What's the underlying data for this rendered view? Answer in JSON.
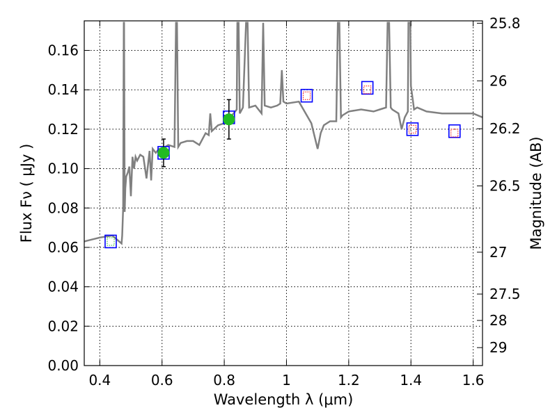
{
  "chart_data": {
    "type": "scatter",
    "title": "",
    "xlabel": "Wavelength  λ (μm)",
    "ylabel": "Flux  Fν  ( μJy )",
    "y2label": "Magnitude (AB)",
    "xlim": [
      0.35,
      1.63
    ],
    "ylim": [
      0.0,
      0.175
    ],
    "grid": true,
    "x_ticks": [
      {
        "value": 0.4,
        "label": "0.4"
      },
      {
        "value": 0.6,
        "label": "0.6"
      },
      {
        "value": 0.8,
        "label": "0.8"
      },
      {
        "value": 1.0,
        "label": "1"
      },
      {
        "value": 1.2,
        "label": "1.2"
      },
      {
        "value": 1.4,
        "label": "1.4"
      },
      {
        "value": 1.6,
        "label": "1.6"
      }
    ],
    "y_ticks": [
      {
        "value": 0.0,
        "label": "0.00"
      },
      {
        "value": 0.02,
        "label": "0.02"
      },
      {
        "value": 0.04,
        "label": "0.04"
      },
      {
        "value": 0.06,
        "label": "0.06"
      },
      {
        "value": 0.08,
        "label": "0.08"
      },
      {
        "value": 0.1,
        "label": "0.10"
      },
      {
        "value": 0.12,
        "label": "0.12"
      },
      {
        "value": 0.14,
        "label": "0.14"
      },
      {
        "value": 0.16,
        "label": "0.16"
      }
    ],
    "y2_ticks": [
      {
        "value": 25.8,
        "label": "25.8"
      },
      {
        "value": 26.0,
        "label": "26"
      },
      {
        "value": 26.2,
        "label": "26.2"
      },
      {
        "value": 26.5,
        "label": "26.5"
      },
      {
        "value": 27.0,
        "label": "27"
      },
      {
        "value": 27.5,
        "label": "27.5"
      },
      {
        "value": 28.0,
        "label": "28"
      },
      {
        "value": 29.0,
        "label": "29"
      }
    ],
    "colors": {
      "spectrum": "#808080",
      "model_box": "#0000ff",
      "upper_limit_box": "#ff0000",
      "detection_point": "#22bb22",
      "error_bar": "#000000"
    },
    "spectrum": {
      "x": [
        0.35,
        0.4,
        0.44,
        0.47,
        0.472,
        0.475,
        0.477,
        0.478,
        0.48,
        0.482,
        0.485,
        0.49,
        0.495,
        0.5,
        0.505,
        0.51,
        0.515,
        0.52,
        0.53,
        0.54,
        0.55,
        0.56,
        0.565,
        0.57,
        0.58,
        0.59,
        0.6,
        0.62,
        0.64,
        0.645,
        0.648,
        0.652,
        0.656,
        0.66,
        0.68,
        0.7,
        0.72,
        0.74,
        0.75,
        0.755,
        0.76,
        0.78,
        0.8,
        0.82,
        0.84,
        0.842,
        0.846,
        0.85,
        0.86,
        0.87,
        0.875,
        0.88,
        0.9,
        0.92,
        0.925,
        0.93,
        0.95,
        0.97,
        0.98,
        0.985,
        0.99,
        1.0,
        1.04,
        1.08,
        1.1,
        1.11,
        1.12,
        1.14,
        1.16,
        1.165,
        1.17,
        1.175,
        1.18,
        1.2,
        1.24,
        1.28,
        1.3,
        1.32,
        1.325,
        1.33,
        1.335,
        1.34,
        1.36,
        1.37,
        1.38,
        1.39,
        1.392,
        1.398,
        1.4,
        1.41,
        1.42,
        1.45,
        1.5,
        1.55,
        1.6,
        1.63
      ],
      "y": [
        0.063,
        0.065,
        0.066,
        0.062,
        0.066,
        0.08,
        0.174,
        0.174,
        0.078,
        0.09,
        0.096,
        0.098,
        0.101,
        0.086,
        0.106,
        0.1,
        0.106,
        0.104,
        0.107,
        0.106,
        0.095,
        0.109,
        0.094,
        0.11,
        0.108,
        0.11,
        0.11,
        0.112,
        0.111,
        0.174,
        0.174,
        0.111,
        0.112,
        0.113,
        0.114,
        0.114,
        0.112,
        0.118,
        0.117,
        0.128,
        0.119,
        0.122,
        0.123,
        0.126,
        0.13,
        0.174,
        0.174,
        0.128,
        0.131,
        0.174,
        0.174,
        0.131,
        0.132,
        0.128,
        0.174,
        0.132,
        0.131,
        0.132,
        0.133,
        0.15,
        0.134,
        0.133,
        0.134,
        0.123,
        0.11,
        0.118,
        0.122,
        0.124,
        0.124,
        0.174,
        0.174,
        0.126,
        0.127,
        0.129,
        0.13,
        0.129,
        0.13,
        0.131,
        0.174,
        0.174,
        0.131,
        0.13,
        0.128,
        0.12,
        0.126,
        0.129,
        0.174,
        0.174,
        0.142,
        0.13,
        0.131,
        0.129,
        0.128,
        0.128,
        0.128,
        0.126
      ]
    },
    "model_boxes": [
      {
        "x": 0.435,
        "y": 0.063
      },
      {
        "x": 0.605,
        "y": 0.108
      },
      {
        "x": 0.815,
        "y": 0.126
      },
      {
        "x": 1.065,
        "y": 0.137
      },
      {
        "x": 1.26,
        "y": 0.141
      },
      {
        "x": 1.405,
        "y": 0.12
      },
      {
        "x": 1.54,
        "y": 0.119
      }
    ],
    "upper_limits": [
      {
        "x": 0.435,
        "y": 0.063,
        "color": "#22bb22"
      },
      {
        "x": 1.065,
        "y": 0.137,
        "color": "#ff0000"
      },
      {
        "x": 1.26,
        "y": 0.14,
        "color": "#ff0000"
      },
      {
        "x": 1.405,
        "y": 0.12,
        "color": "#ff0000"
      },
      {
        "x": 1.54,
        "y": 0.118,
        "color": "#ff0000"
      }
    ],
    "detections": [
      {
        "x": 0.605,
        "y": 0.108,
        "yerr_low": 0.007,
        "yerr_high": 0.007
      },
      {
        "x": 0.815,
        "y": 0.125,
        "yerr_low": 0.01,
        "yerr_high": 0.01
      }
    ]
  }
}
